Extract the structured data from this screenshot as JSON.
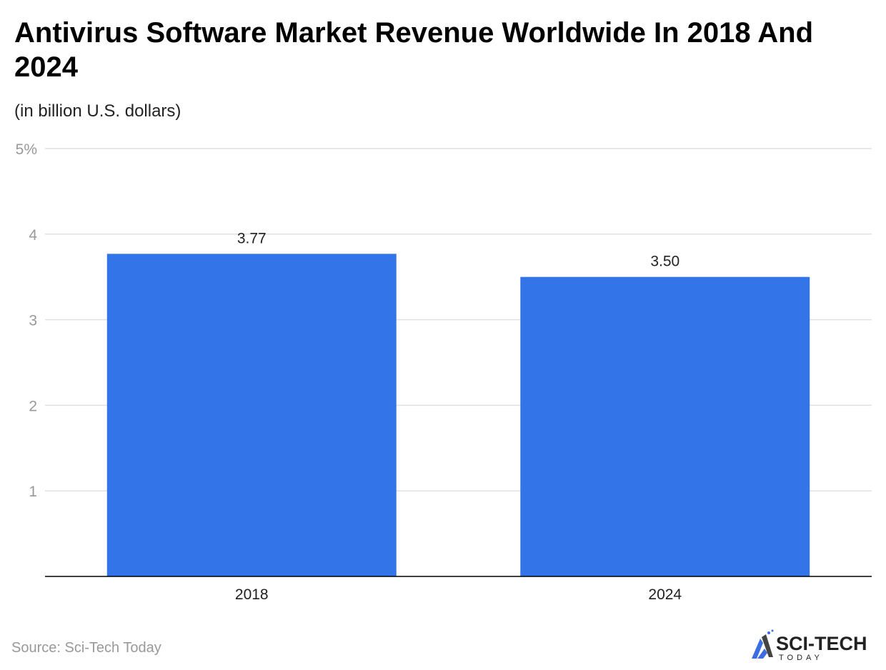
{
  "title": "Antivirus Software Market Revenue Worldwide In 2018 And 2024",
  "subtitle": "(in billion U.S. dollars)",
  "source": "Source: Sci-Tech Today",
  "logo": {
    "text": "SCI-TECH",
    "subtext": "TODAY"
  },
  "colors": {
    "bar": "#3375E9",
    "grid": "#E0E0E0",
    "axis": "#000000",
    "tick": "#999999"
  },
  "chart_data": {
    "type": "bar",
    "categories": [
      "2018",
      "2024"
    ],
    "values": [
      3.77,
      3.5
    ],
    "data_labels": [
      "3.77",
      "3.50"
    ],
    "ylim": [
      0,
      5
    ],
    "yticks": [
      1,
      2,
      3,
      4,
      5
    ],
    "ytick_labels": [
      "1",
      "2",
      "3",
      "4",
      "5%"
    ],
    "grid": true
  }
}
